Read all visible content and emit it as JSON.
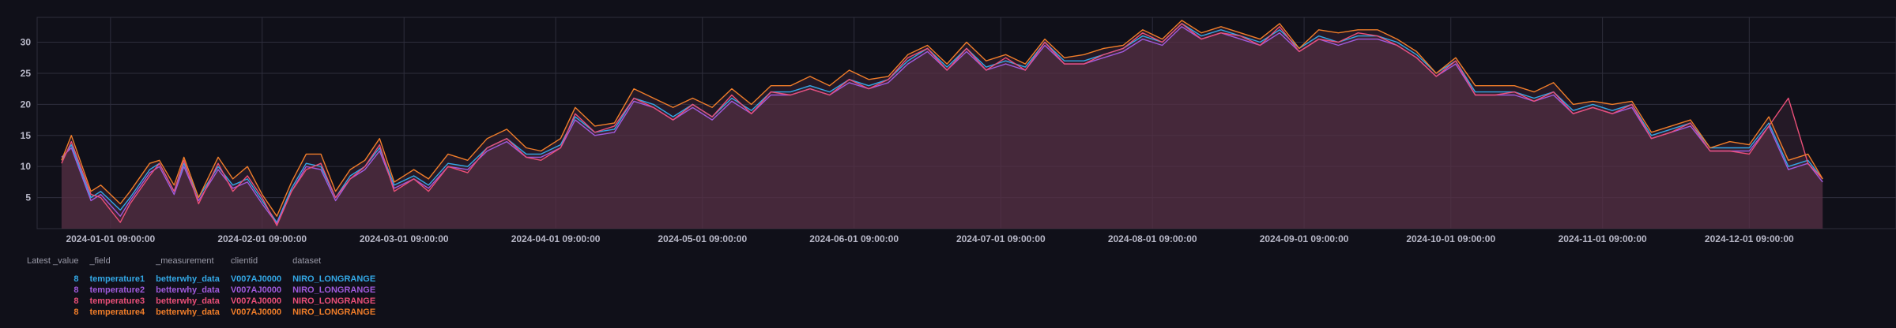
{
  "colors": {
    "background": "#101019",
    "grid": "#2e2e3c",
    "area_fill": "#5a3348"
  },
  "chart_data": {
    "type": "line",
    "xlabel": "",
    "ylabel": "",
    "ylim": [
      0,
      34
    ],
    "yticks": [
      5,
      10,
      15,
      20,
      25,
      30
    ],
    "xlim": [
      "2023-12-17",
      "2024-12-31"
    ],
    "xticks": [
      "2024-01-01 09:00:00",
      "2024-02-01 09:00:00",
      "2024-03-01 09:00:00",
      "2024-04-01 09:00:00",
      "2024-05-01 09:00:00",
      "2024-06-01 09:00:00",
      "2024-07-01 09:00:00",
      "2024-08-01 09:00:00",
      "2024-09-01 09:00:00",
      "2024-10-01 09:00:00",
      "2024-11-01 09:00:00",
      "2024-12-01 09:00:00"
    ],
    "grid": true,
    "legend_position": "bottom-left",
    "x": [
      "2023-12-22",
      "2023-12-24",
      "2023-12-28",
      "2023-12-30",
      "2024-01-03",
      "2024-01-05",
      "2024-01-09",
      "2024-01-11",
      "2024-01-14",
      "2024-01-16",
      "2024-01-19",
      "2024-01-23",
      "2024-01-26",
      "2024-01-29",
      "2024-02-01",
      "2024-02-04",
      "2024-02-07",
      "2024-02-10",
      "2024-02-13",
      "2024-02-16",
      "2024-02-19",
      "2024-02-22",
      "2024-02-25",
      "2024-02-28",
      "2024-03-03",
      "2024-03-06",
      "2024-03-10",
      "2024-03-14",
      "2024-03-18",
      "2024-03-22",
      "2024-03-26",
      "2024-03-29",
      "2024-04-02",
      "2024-04-05",
      "2024-04-09",
      "2024-04-13",
      "2024-04-17",
      "2024-04-21",
      "2024-04-25",
      "2024-04-29",
      "2024-05-03",
      "2024-05-07",
      "2024-05-11",
      "2024-05-15",
      "2024-05-19",
      "2024-05-23",
      "2024-05-27",
      "2024-05-31",
      "2024-06-04",
      "2024-06-08",
      "2024-06-12",
      "2024-06-16",
      "2024-06-20",
      "2024-06-24",
      "2024-06-28",
      "2024-07-02",
      "2024-07-06",
      "2024-07-10",
      "2024-07-14",
      "2024-07-18",
      "2024-07-22",
      "2024-07-26",
      "2024-07-30",
      "2024-08-03",
      "2024-08-07",
      "2024-08-11",
      "2024-08-15",
      "2024-08-19",
      "2024-08-23",
      "2024-08-27",
      "2024-08-31",
      "2024-09-04",
      "2024-09-08",
      "2024-09-12",
      "2024-09-16",
      "2024-09-20",
      "2024-09-24",
      "2024-09-28",
      "2024-10-02",
      "2024-10-06",
      "2024-10-10",
      "2024-10-14",
      "2024-10-18",
      "2024-10-22",
      "2024-10-26",
      "2024-10-30",
      "2024-11-03",
      "2024-11-07",
      "2024-11-11",
      "2024-11-15",
      "2024-11-19",
      "2024-11-23",
      "2024-11-27",
      "2024-12-01",
      "2024-12-05",
      "2024-12-09",
      "2024-12-13",
      "2024-12-16"
    ],
    "series": [
      {
        "name": "temperature1",
        "color": "#33a8e6",
        "values": [
          11,
          13.5,
          5,
          6,
          3,
          5,
          9.5,
          10.5,
          6,
          10.5,
          5,
          10,
          7,
          8,
          4.5,
          1,
          6.5,
          10.5,
          10,
          5,
          8.5,
          10,
          13,
          7,
          8.5,
          7,
          10.5,
          10,
          13,
          14.5,
          12,
          12,
          13.5,
          18,
          15.5,
          16,
          21,
          20,
          18,
          20,
          18,
          21,
          19,
          22,
          22,
          23,
          22,
          24,
          23,
          24,
          27,
          29,
          26,
          29,
          26,
          27,
          26,
          30,
          27,
          27,
          28,
          29,
          31,
          30,
          33,
          31,
          32,
          31,
          30,
          32,
          29,
          31,
          30,
          31,
          31,
          30,
          28,
          25,
          27,
          22,
          22,
          22,
          21,
          22,
          19,
          20,
          19,
          20,
          15,
          16,
          17,
          13,
          13,
          13,
          17,
          10,
          11,
          8
        ]
      },
      {
        "name": "temperature2",
        "color": "#a05adc",
        "values": [
          11.5,
          13,
          4.5,
          5.5,
          2,
          4.5,
          9,
          10,
          5.5,
          10,
          4.5,
          9.5,
          6.5,
          7.5,
          4,
          0.8,
          6,
          10,
          9.5,
          4.5,
          8,
          9.5,
          12.5,
          6.5,
          8,
          6.5,
          10,
          9.5,
          12.5,
          14,
          11.5,
          11.5,
          13,
          17.5,
          15,
          15.5,
          20.5,
          19.5,
          17.5,
          19.5,
          17.5,
          20.5,
          18.5,
          21.5,
          21.5,
          22.5,
          21.5,
          23.5,
          22.5,
          23.5,
          26.5,
          28.5,
          25.5,
          28.5,
          25.5,
          26.5,
          25.5,
          29.5,
          26.5,
          26.5,
          27.5,
          28.5,
          30.5,
          29.5,
          32.5,
          30.5,
          31.5,
          30.5,
          29.5,
          31.5,
          28.5,
          30.5,
          29.5,
          30.5,
          30.5,
          29.5,
          27.5,
          24.5,
          26.5,
          21.5,
          21.5,
          21.5,
          20.5,
          21.5,
          18.5,
          19.5,
          18.5,
          19.5,
          14.5,
          15.5,
          16.5,
          12.5,
          12.5,
          12.5,
          16.5,
          9.5,
          10.5,
          7.5
        ]
      },
      {
        "name": "temperature3",
        "color": "#ea4f78",
        "values": [
          10.5,
          14,
          5.5,
          5,
          1,
          4,
          8.5,
          10.5,
          6,
          11,
          4,
          10.5,
          6,
          8.5,
          5,
          0.5,
          6,
          9.5,
          10.5,
          5,
          8,
          10,
          13.5,
          6,
          8,
          6,
          10,
          9,
          13,
          14.5,
          11.5,
          11,
          13,
          18.5,
          15.5,
          16.5,
          21,
          19.5,
          17.5,
          20,
          18,
          21.5,
          18.5,
          22,
          21.5,
          22.5,
          21.5,
          24,
          22.5,
          24,
          27.5,
          29,
          25.5,
          29,
          25.5,
          27.5,
          25.5,
          30,
          26.5,
          26.5,
          28,
          29,
          31.5,
          30,
          33,
          30.5,
          31.5,
          31,
          29.5,
          32.5,
          28.5,
          30.5,
          30,
          31.5,
          31,
          29.5,
          27.5,
          24.5,
          27,
          21.5,
          21.5,
          22,
          20.5,
          22,
          18.5,
          19.5,
          18.5,
          20,
          14.5,
          15.5,
          17,
          12.5,
          12.5,
          12,
          16.5,
          21,
          10.5,
          8
        ]
      },
      {
        "name": "temperature4",
        "color": "#f07d29",
        "values": [
          11,
          15,
          6,
          7,
          4,
          6,
          10.5,
          11,
          7,
          11.5,
          5,
          11.5,
          8,
          10,
          5.5,
          2,
          7.5,
          12,
          12,
          6,
          9.5,
          11,
          14.5,
          7.5,
          9.5,
          8,
          12,
          11,
          14.5,
          16,
          13,
          12.5,
          14.5,
          19.5,
          16.5,
          17,
          22.5,
          21,
          19.5,
          21,
          19.5,
          22.5,
          20,
          23,
          23,
          24.5,
          23,
          25.5,
          24,
          24.5,
          28,
          29.5,
          26.5,
          30,
          27,
          28,
          26.5,
          30.5,
          27.5,
          28,
          29,
          29.5,
          32,
          30.5,
          33.5,
          31.5,
          32.5,
          31.5,
          30.5,
          33,
          29,
          32,
          31.5,
          32,
          32,
          30.5,
          28.5,
          25,
          27.5,
          23,
          23,
          23,
          22,
          23.5,
          20,
          20.5,
          20,
          20.5,
          15.5,
          16.5,
          17.5,
          13,
          14,
          13.5,
          18,
          11,
          12,
          8
        ]
      }
    ]
  },
  "legend": {
    "headers": [
      "Latest _value",
      "_field",
      "_measurement",
      "clientid",
      "dataset"
    ],
    "rows": [
      {
        "value": "8",
        "field": "temperature1",
        "measurement": "betterwhy_data",
        "clientid": "V007AJ0000",
        "dataset": "NIRO_LONGRANGE",
        "color": "#33a8e6"
      },
      {
        "value": "8",
        "field": "temperature2",
        "measurement": "betterwhy_data",
        "clientid": "V007AJ0000",
        "dataset": "NIRO_LONGRANGE",
        "color": "#a05adc"
      },
      {
        "value": "8",
        "field": "temperature3",
        "measurement": "betterwhy_data",
        "clientid": "V007AJ0000",
        "dataset": "NIRO_LONGRANGE",
        "color": "#ea4f78"
      },
      {
        "value": "8",
        "field": "temperature4",
        "measurement": "betterwhy_data",
        "clientid": "V007AJ0000",
        "dataset": "NIRO_LONGRANGE",
        "color": "#f07d29"
      }
    ]
  }
}
